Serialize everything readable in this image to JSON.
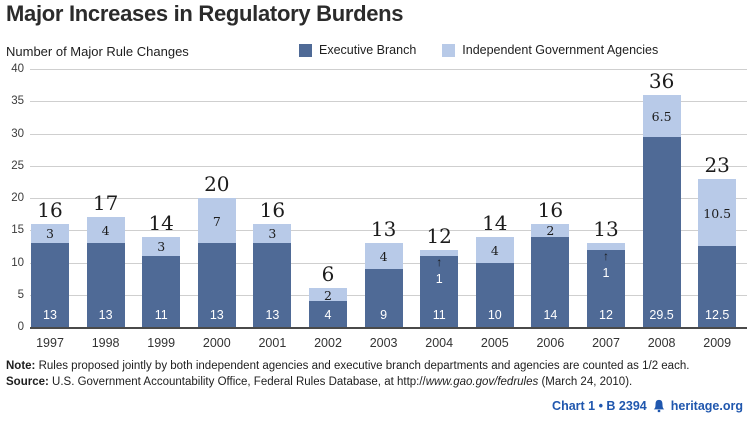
{
  "title": "Major Increases in Regulatory Burdens",
  "axis_label": "Number of Major Rule Changes",
  "legend": {
    "executive_label": "Executive Branch",
    "independent_label": "Independent Government Agencies"
  },
  "colors": {
    "executive": "#4f6a96",
    "independent": "#b8cae8",
    "gridline": "#cfcfcf",
    "footer_blue": "#2057ae"
  },
  "chart_data": {
    "type": "bar",
    "stacked": true,
    "title": "Major Increases in Regulatory Burdens",
    "ylabel": "Number of Major Rule Changes",
    "categories": [
      "1997",
      "1998",
      "1999",
      "2000",
      "2001",
      "2002",
      "2003",
      "2004",
      "2005",
      "2006",
      "2007",
      "2008",
      "2009"
    ],
    "series": [
      {
        "name": "Executive Branch",
        "color": "#4f6a96",
        "values": [
          13,
          13,
          11,
          13,
          13,
          4,
          9,
          11,
          10,
          14,
          12,
          29.5,
          12.5
        ]
      },
      {
        "name": "Independent Government Agencies",
        "color": "#b8cae8",
        "values": [
          3,
          4,
          3,
          7,
          3,
          2,
          4,
          1,
          4,
          2,
          1,
          6.5,
          10.5
        ]
      }
    ],
    "totals": [
      16,
      17,
      14,
      20,
      16,
      6,
      13,
      12,
      14,
      16,
      13,
      36,
      23
    ],
    "ylim": [
      0,
      40
    ],
    "yticks": [
      0,
      5,
      10,
      15,
      20,
      25,
      30,
      35,
      40
    ],
    "grid": true,
    "legend_position": "top"
  },
  "notes": {
    "note_label": "Note:",
    "note_text": " Rules proposed jointly by both independent agencies and executive branch departments and agencies are counted as 1/2 each.",
    "source_label": "Source:",
    "source_prefix": " U.S. Government Accountability Office, Federal Rules Database, at http://",
    "source_italic": "www.gao.gov/fedrules",
    "source_suffix": " (March 24, 2010)."
  },
  "footer": {
    "chart_ref": "Chart 1 • B 2394",
    "site": "heritage.org"
  }
}
